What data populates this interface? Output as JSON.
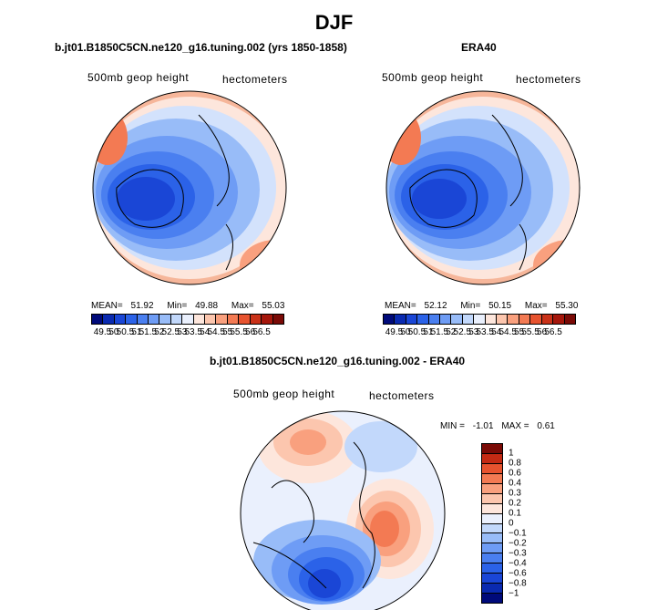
{
  "season": "DJF",
  "panels": [
    {
      "title": "b.jt01.B1850C5CN.ne120_g16.tuning.002 (yrs 1850-1858)",
      "variable": "500mb geop height",
      "units": "hectometers",
      "mean_label": "MEAN=",
      "mean": "51.92",
      "min_label": "Min=",
      "min": "49.88",
      "max_label": "Max=",
      "max": "55.03"
    },
    {
      "title": "ERA40",
      "variable": "500mb geop height",
      "units": "hectometers",
      "mean_label": "MEAN=",
      "mean": "52.12",
      "min_label": "Min=",
      "min": "50.15",
      "max_label": "Max=",
      "max": "55.30"
    }
  ],
  "abs_colorbar": {
    "colors": [
      "#000a7a",
      "#0a2ab0",
      "#1a46d6",
      "#2b62e8",
      "#4a7ff0",
      "#6e9cf5",
      "#98bcf8",
      "#c2d8fb",
      "#eaf0fd",
      "#fde6dc",
      "#fcc6ae",
      "#f9a07e",
      "#f37a53",
      "#e7532f",
      "#c93118",
      "#a5160b",
      "#7a0a06"
    ],
    "ticks": [
      "49.5",
      "50",
      "50.5",
      "51",
      "51.5",
      "52",
      "52.5",
      "53",
      "53.5",
      "54",
      "54.5",
      "55",
      "55.5",
      "56",
      "56.5"
    ]
  },
  "diff_panel": {
    "title": "b.jt01.B1850C5CN.ne120_g16.tuning.002 - ERA40",
    "variable": "500mb geop height",
    "units": "hectometers",
    "min_label": "MIN =",
    "min": "-1.01",
    "max_label": "MAX =",
    "max": "0.61",
    "colorbar": {
      "colors": [
        "#7a0a06",
        "#c42a14",
        "#e7532f",
        "#f37a53",
        "#f9a07e",
        "#fcc6ae",
        "#fde6dc",
        "#eaf0fd",
        "#c2d8fb",
        "#98bcf8",
        "#6e9cf5",
        "#4a7ff0",
        "#2b62e8",
        "#1a46d6",
        "#0a2ab0",
        "#000a7a"
      ],
      "ticks": [
        "1",
        "0.8",
        "0.6",
        "0.4",
        "0.3",
        "0.2",
        "0.1",
        "0",
        "−0.1",
        "−0.2",
        "−0.3",
        "−0.4",
        "−0.6",
        "−0.8",
        "−1"
      ]
    }
  },
  "colors": {
    "low_blue": "#1535c8",
    "mid_blue": "#3d6ff0",
    "light_blue": "#a9c7f9",
    "pale": "#eaf0fd",
    "light_red": "#fcc6ae",
    "red": "#ef6a44",
    "deep_red": "#c82c18"
  }
}
